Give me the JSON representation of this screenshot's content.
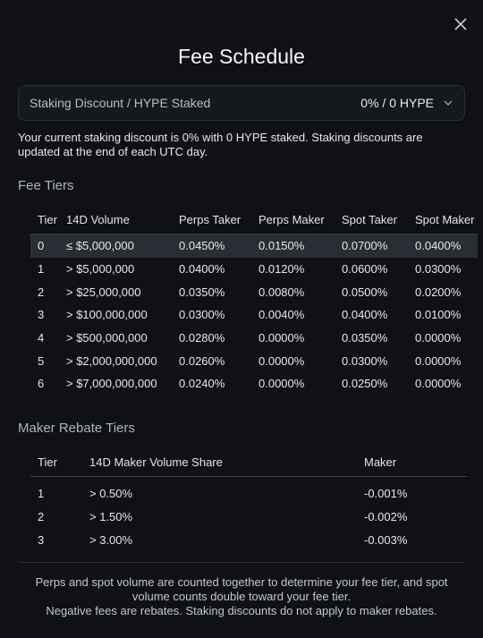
{
  "modal": {
    "title": "Fee Schedule"
  },
  "staking": {
    "label": "Staking Discount / HYPE Staked",
    "selected": "0% / 0 HYPE",
    "note": "Your current staking discount is 0% with 0 HYPE staked. Staking discounts are updated at the end of each UTC day."
  },
  "fee_tiers": {
    "title": "Fee Tiers",
    "headers": [
      "Tier",
      "14D Volume",
      "Perps Taker",
      "Perps Maker",
      "Spot Taker",
      "Spot Maker"
    ],
    "rows": [
      [
        "0",
        "≤ $5,000,000",
        "0.0450%",
        "0.0150%",
        "0.0700%",
        "0.0400%"
      ],
      [
        "1",
        "> $5,000,000",
        "0.0400%",
        "0.0120%",
        "0.0600%",
        "0.0300%"
      ],
      [
        "2",
        "> $25,000,000",
        "0.0350%",
        "0.0080%",
        "0.0500%",
        "0.0200%"
      ],
      [
        "3",
        "> $100,000,000",
        "0.0300%",
        "0.0040%",
        "0.0400%",
        "0.0100%"
      ],
      [
        "4",
        "> $500,000,000",
        "0.0280%",
        "0.0000%",
        "0.0350%",
        "0.0000%"
      ],
      [
        "5",
        "> $2,000,000,000",
        "0.0260%",
        "0.0000%",
        "0.0300%",
        "0.0000%"
      ],
      [
        "6",
        "> $7,000,000,000",
        "0.0240%",
        "0.0000%",
        "0.0250%",
        "0.0000%"
      ]
    ]
  },
  "maker_rebate": {
    "title": "Maker Rebate Tiers",
    "headers": [
      "Tier",
      "14D Maker Volume Share",
      "Maker"
    ],
    "rows": [
      [
        "1",
        "> 0.50%",
        "-0.001%"
      ],
      [
        "2",
        "> 1.50%",
        "-0.002%"
      ],
      [
        "3",
        "> 3.00%",
        "-0.003%"
      ]
    ]
  },
  "footer": {
    "line1": "Perps and spot volume are counted together to determine your fee tier, and spot volume counts double toward your fee tier.",
    "line2": "Negative fees are rebates. Staking discounts do not apply to maker rebates."
  }
}
